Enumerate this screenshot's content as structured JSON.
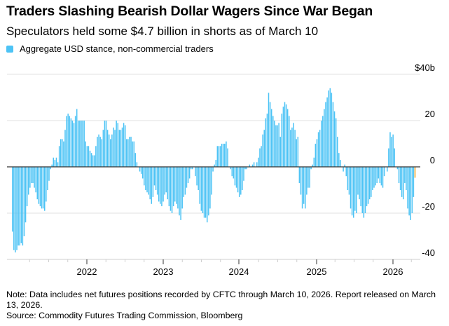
{
  "chart_data": {
    "type": "bar",
    "title": "Traders Slashing Bearish Dollar Wagers Since War Began",
    "subtitle": "Speculators held some $4.7 billion in shorts as of March 10",
    "legend": [
      {
        "label": "Aggregate USD stance, non-commercial traders",
        "color": "#4cc3f5"
      }
    ],
    "legend_position": "top-left",
    "xlabel": "",
    "ylabel": "",
    "y_unit_label": "$40b",
    "ylim": [
      -40,
      40
    ],
    "yticks": [
      40,
      20,
      0,
      -20,
      -40
    ],
    "ytick_labels": [
      "$40b",
      "20",
      "0",
      "-20",
      "-40"
    ],
    "x_tick_labels": [
      "2022",
      "2023",
      "2024",
      "2025",
      "2026"
    ],
    "x_start": "2021-01",
    "x_end": "2026-03-10",
    "frequency": "weekly",
    "grid": true,
    "highlight_last_color": "#f5a623",
    "bar_color": "#4cc3f5",
    "values": [
      -28,
      -36,
      -37,
      -36,
      -34,
      -34,
      -33,
      -34,
      -30,
      -24,
      -17,
      -12,
      -9,
      -7,
      -7,
      -9,
      -11,
      -14,
      -16,
      -17,
      -18,
      -18,
      -19,
      -15,
      -10,
      -6,
      -1,
      1,
      4,
      3,
      4,
      2,
      9,
      12,
      12,
      11,
      16,
      22,
      23,
      22,
      21,
      20,
      19,
      22,
      25,
      20,
      20,
      20,
      20,
      20,
      11,
      9,
      9,
      7,
      6,
      5,
      5,
      9,
      13,
      14,
      13,
      12,
      16,
      20,
      20,
      16,
      14,
      12,
      14,
      17,
      16,
      20,
      19,
      16,
      16,
      17,
      19,
      18,
      12,
      12,
      13,
      13,
      11,
      11,
      6,
      2,
      0,
      -2,
      -3,
      -5,
      -8,
      -10,
      -11,
      -12,
      -14,
      -16,
      -13,
      -8,
      -10,
      -12,
      -15,
      -16,
      -17,
      -15,
      -12,
      -11,
      -14,
      -17,
      -19,
      -20,
      -17,
      -15,
      -16,
      -18,
      -21,
      -23,
      -18,
      -13,
      -12,
      -9,
      -7,
      -5,
      -1,
      -1,
      0,
      -4,
      -8,
      -10,
      -16,
      -19,
      -20,
      -22,
      -22,
      -24,
      -21,
      -18,
      -12,
      -2,
      1,
      3,
      9,
      9,
      9,
      10,
      10,
      10,
      11,
      8,
      0,
      -1,
      -4,
      -5,
      -8,
      -9,
      -11,
      -13,
      -12,
      -10,
      -6,
      -1,
      -1,
      0,
      1,
      0,
      1,
      2,
      0,
      2,
      4,
      8,
      9,
      14,
      16,
      21,
      23,
      32,
      28,
      25,
      22,
      20,
      18,
      18,
      19,
      13,
      23,
      26,
      28,
      27,
      25,
      22,
      16,
      17,
      19,
      16,
      12,
      13,
      -7,
      -12,
      -18,
      -16,
      -18,
      -12,
      -9,
      -9,
      -1,
      1,
      4,
      10,
      12,
      15,
      16,
      20,
      22,
      25,
      28,
      30,
      33,
      34,
      32,
      28,
      24,
      21,
      13,
      6,
      3,
      0,
      -2,
      1,
      -4,
      -10,
      -12,
      -18,
      -21,
      -22,
      -19,
      -20,
      -12,
      -14,
      -17,
      -20,
      -22,
      -20,
      -17,
      -16,
      -14,
      -13,
      -10,
      -9,
      -8,
      -7,
      -5,
      -7,
      -8,
      -9,
      -4,
      0,
      -2,
      8,
      15,
      13,
      14,
      8,
      0,
      -1,
      -7,
      -10,
      -13,
      -14,
      -7,
      -10,
      -18,
      -21,
      -23,
      -20,
      -13,
      -4.7
    ]
  }
}
